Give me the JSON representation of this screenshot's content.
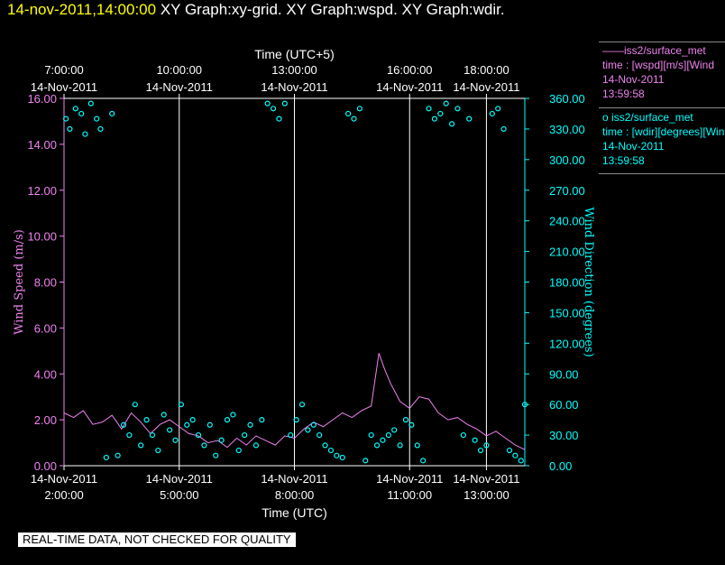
{
  "header": {
    "time": "14-nov-2011,14:00:00",
    "graphs": "XY Graph:xy-grid.  XY Graph:wspd.  XY Graph:wdir."
  },
  "disclaimer": "REAL-TIME DATA, NOT CHECKED FOR QUALITY",
  "legend": [
    {
      "marker": "——",
      "name": "iss2/surface_met",
      "var": "time : [wspd][m/s][Wind",
      "date": "14-Nov-2011",
      "time": "13:59:58",
      "color": "#ee82ee"
    },
    {
      "marker": "o",
      "name": "iss2/surface_met",
      "var": "time : [wdir][degrees][Wind",
      "date": "14-Nov-2011",
      "time": "13:59:58",
      "color": "#00ffff"
    }
  ],
  "chart_data": {
    "type": "line",
    "xlabel_bottom": "Time (UTC)",
    "xlabel_top": "Time (UTC+5)",
    "ylabel_left": "Wind Speed (m/s)",
    "ylabel_right": "Wind Direction (degrees)",
    "x_range_hours": [
      2.0,
      14.0
    ],
    "ylim_left": [
      0,
      16
    ],
    "ylim_right": [
      0,
      360
    ],
    "grid_vertical": true,
    "bottom_ticks": [
      {
        "h": 2,
        "date": "14-Nov-2011",
        "time": "2:00:00"
      },
      {
        "h": 5,
        "date": "14-Nov-2011",
        "time": "5:00:00"
      },
      {
        "h": 8,
        "date": "14-Nov-2011",
        "time": "8:00:00"
      },
      {
        "h": 11,
        "date": "14-Nov-2011",
        "time": "11:00:00"
      },
      {
        "h": 13,
        "date": "14-Nov-2011",
        "time": "13:00:00"
      }
    ],
    "top_ticks": [
      {
        "h": 2,
        "time": "7:00:00",
        "date": "14-Nov-2011"
      },
      {
        "h": 5,
        "time": "10:00:00",
        "date": "14-Nov-2011"
      },
      {
        "h": 8,
        "time": "13:00:00",
        "date": "14-Nov-2011"
      },
      {
        "h": 11,
        "time": "16:00:00",
        "date": "14-Nov-2011"
      },
      {
        "h": 13,
        "time": "18:00:00",
        "date": "14-Nov-2011"
      }
    ],
    "left_ticks": [
      "0.00",
      "2.00",
      "4.00",
      "6.00",
      "8.00",
      "10.00",
      "12.00",
      "14.00",
      "16.00"
    ],
    "right_ticks": [
      "0.00",
      "30.00",
      "60.00",
      "90.00",
      "120.00",
      "150.00",
      "180.00",
      "210.00",
      "240.00",
      "270.00",
      "300.00",
      "330.00",
      "360.00"
    ],
    "colors": {
      "wspd": "#ee82ee",
      "wdir": "#00ffff",
      "grid": "#ffffff",
      "axis_left": "#ee82ee",
      "axis_right": "#00ffff"
    },
    "series": [
      {
        "name": "iss2/surface_met",
        "variable": "wspd",
        "axis": "left",
        "x": [
          2.0,
          2.25,
          2.5,
          2.75,
          3.0,
          3.25,
          3.5,
          3.75,
          4.0,
          4.25,
          4.5,
          4.75,
          5.0,
          5.25,
          5.5,
          5.75,
          6.0,
          6.25,
          6.5,
          6.75,
          7.0,
          7.25,
          7.5,
          7.75,
          8.0,
          8.25,
          8.5,
          8.75,
          9.0,
          9.25,
          9.5,
          9.75,
          10.0,
          10.2,
          10.35,
          10.5,
          10.75,
          11.0,
          11.25,
          11.5,
          11.75,
          12.0,
          12.25,
          12.5,
          12.75,
          13.0,
          13.25,
          13.5,
          13.75,
          14.0
        ],
        "y": [
          2.3,
          2.1,
          2.4,
          1.8,
          1.9,
          2.2,
          1.6,
          2.3,
          1.9,
          1.4,
          1.8,
          2.0,
          1.7,
          1.4,
          1.3,
          1.0,
          1.1,
          0.8,
          1.2,
          0.9,
          1.3,
          1.1,
          0.9,
          1.3,
          1.2,
          1.6,
          1.9,
          1.7,
          2.0,
          2.3,
          2.1,
          2.4,
          2.6,
          4.9,
          4.2,
          3.6,
          2.8,
          2.5,
          3.0,
          2.9,
          2.3,
          2.0,
          2.1,
          1.8,
          1.6,
          1.3,
          1.5,
          1.2,
          0.9,
          0.7
        ]
      },
      {
        "name": "iss2/surface_met",
        "variable": "wdir",
        "axis": "right",
        "x": [
          2.05,
          2.15,
          2.3,
          2.45,
          2.55,
          2.7,
          2.85,
          2.95,
          3.1,
          3.25,
          3.4,
          3.55,
          3.7,
          3.85,
          4.0,
          4.15,
          4.3,
          4.45,
          4.6,
          4.75,
          4.9,
          5.05,
          5.2,
          5.35,
          5.5,
          5.65,
          5.8,
          5.95,
          6.1,
          6.25,
          6.4,
          6.55,
          6.7,
          6.85,
          7.0,
          7.15,
          7.3,
          7.45,
          7.6,
          7.75,
          7.9,
          8.05,
          8.2,
          8.35,
          8.5,
          8.65,
          8.8,
          8.95,
          9.1,
          9.25,
          9.4,
          9.55,
          9.7,
          9.85,
          10.0,
          10.15,
          10.3,
          10.45,
          10.6,
          10.75,
          10.9,
          11.05,
          11.2,
          11.35,
          11.5,
          11.65,
          11.8,
          11.95,
          12.1,
          12.25,
          12.4,
          12.55,
          12.7,
          12.85,
          13.0,
          13.15,
          13.3,
          13.45,
          13.6,
          13.75,
          13.9,
          14.0
        ],
        "y": [
          340,
          330,
          350,
          345,
          325,
          355,
          340,
          330,
          8,
          345,
          10,
          40,
          30,
          60,
          20,
          45,
          30,
          15,
          50,
          35,
          25,
          60,
          40,
          45,
          30,
          20,
          40,
          10,
          25,
          45,
          50,
          15,
          30,
          40,
          20,
          45,
          355,
          350,
          340,
          355,
          30,
          45,
          60,
          35,
          40,
          30,
          20,
          15,
          10,
          8,
          345,
          340,
          350,
          5,
          30,
          20,
          25,
          30,
          35,
          20,
          45,
          40,
          20,
          5,
          350,
          340,
          345,
          355,
          335,
          350,
          30,
          340,
          25,
          15,
          20,
          345,
          350,
          330,
          15,
          10,
          5,
          60
        ]
      }
    ]
  }
}
